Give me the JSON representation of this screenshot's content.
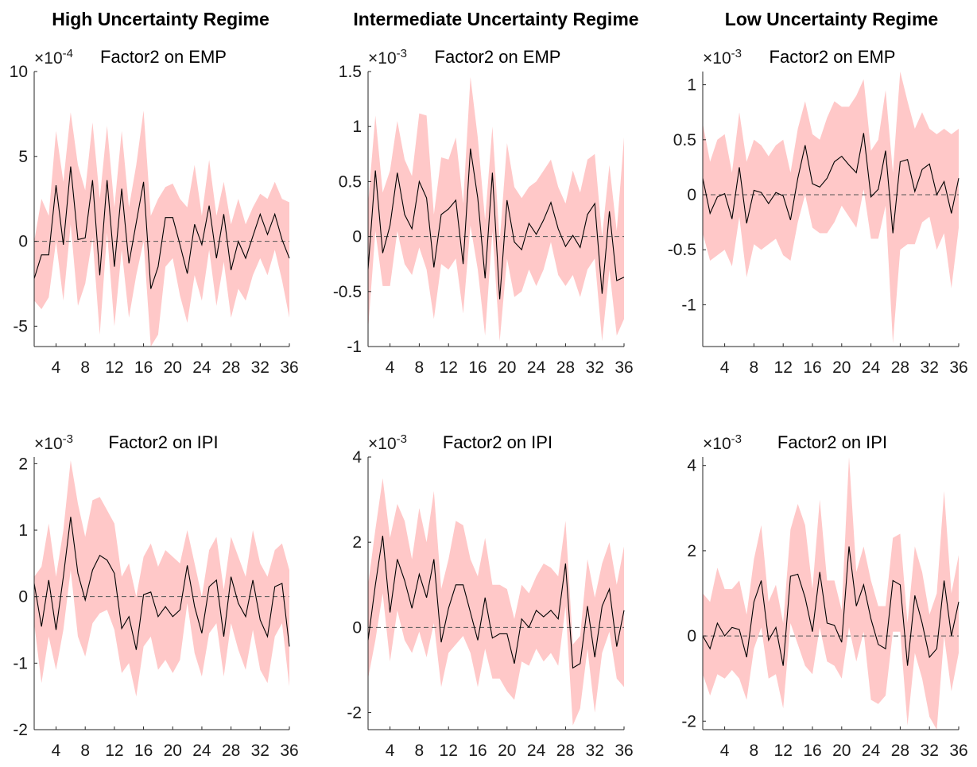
{
  "figure": {
    "column_titles": [
      "High Uncertainty Regime",
      "Intermediate Uncertainty Regime",
      "Low Uncertainty Regime"
    ]
  },
  "chart_data": [
    {
      "type": "line",
      "panel": "high-emp",
      "title": "Factor2 on EMP",
      "multiplier": "×10",
      "exponent": "-4",
      "xlim": [
        1,
        36
      ],
      "ylim": [
        -6.2,
        10
      ],
      "xticks": [
        4,
        8,
        12,
        16,
        20,
        24,
        28,
        32,
        36
      ],
      "yticks": [
        -5,
        0,
        5,
        10
      ],
      "ytick_labels": [
        "-5",
        "0",
        "5",
        "10"
      ],
      "x": [
        1,
        2,
        3,
        4,
        5,
        6,
        7,
        8,
        9,
        10,
        11,
        12,
        13,
        14,
        15,
        16,
        17,
        18,
        19,
        20,
        21,
        22,
        23,
        24,
        25,
        26,
        27,
        28,
        29,
        30,
        31,
        32,
        33,
        34,
        35,
        36
      ],
      "series": [
        {
          "values": [
            -2.2,
            -0.8,
            -0.8,
            3.3,
            -0.2,
            4.4,
            0.1,
            0.2,
            3.6,
            -2.0,
            3.6,
            -1.5,
            3.1,
            -1.3,
            1.1,
            3.5,
            -2.8,
            -1.5,
            1.4,
            1.4,
            -0.2,
            -1.9,
            1.0,
            -0.2,
            2.1,
            -1.0,
            1.6,
            -1.7,
            0.0,
            -1.0,
            0.3,
            1.6,
            0.4,
            1.6,
            0.1,
            -1.0
          ]
        },
        {
          "role": "band-upper",
          "values": [
            0.0,
            2.5,
            1.5,
            6.5,
            3.5,
            7.6,
            4.5,
            3.0,
            7.0,
            2.5,
            6.8,
            2.0,
            6.5,
            2.0,
            4.5,
            7.7,
            1.5,
            2.5,
            3.2,
            3.4,
            2.5,
            2.0,
            4.5,
            1.5,
            4.8,
            1.5,
            3.5,
            1.0,
            2.5,
            1.0,
            2.0,
            2.8,
            2.5,
            3.5,
            2.5,
            2.3
          ]
        },
        {
          "role": "band-lower",
          "values": [
            -3.5,
            -4.0,
            -3.3,
            0.0,
            -3.5,
            1.0,
            -3.8,
            -2.5,
            0.2,
            -5.5,
            0.5,
            -5.0,
            -0.5,
            -4.5,
            -2.0,
            0.0,
            -6.2,
            -5.5,
            -1.5,
            -1.0,
            -3.2,
            -4.8,
            -2.0,
            -3.5,
            -0.5,
            -3.8,
            -1.2,
            -4.5,
            -2.8,
            -3.5,
            -2.0,
            -1.0,
            -2.0,
            -0.5,
            -2.3,
            -4.5
          ]
        }
      ]
    },
    {
      "type": "line",
      "panel": "inter-emp",
      "title": "Factor2 on EMP",
      "multiplier": "×10",
      "exponent": "-3",
      "xlim": [
        1,
        36
      ],
      "ylim": [
        -1.0,
        1.5
      ],
      "xticks": [
        4,
        8,
        12,
        16,
        20,
        24,
        28,
        32,
        36
      ],
      "yticks": [
        -1,
        -0.5,
        0,
        0.5,
        1,
        1.5
      ],
      "ytick_labels": [
        "-1",
        "-0.5",
        "0",
        "0.5",
        "1",
        "1.5"
      ],
      "x": [
        1,
        2,
        3,
        4,
        5,
        6,
        7,
        8,
        9,
        10,
        11,
        12,
        13,
        14,
        15,
        16,
        17,
        18,
        19,
        20,
        21,
        22,
        23,
        24,
        25,
        26,
        27,
        28,
        29,
        30,
        31,
        32,
        33,
        34,
        35,
        36
      ],
      "series": [
        {
          "values": [
            -0.3,
            0.6,
            -0.15,
            0.1,
            0.58,
            0.2,
            0.07,
            0.5,
            0.35,
            -0.28,
            0.2,
            0.25,
            0.33,
            -0.25,
            0.8,
            0.35,
            -0.38,
            0.58,
            -0.57,
            0.33,
            -0.05,
            -0.12,
            0.12,
            0.02,
            0.15,
            0.31,
            0.07,
            -0.09,
            0.01,
            -0.1,
            0.2,
            0.3,
            -0.52,
            0.23,
            -0.4,
            -0.37
          ]
        },
        {
          "role": "band-upper",
          "values": [
            0.3,
            1.1,
            0.4,
            0.6,
            1.05,
            0.7,
            0.55,
            1.12,
            1.1,
            0.2,
            0.72,
            0.7,
            0.9,
            0.3,
            1.45,
            0.9,
            0.15,
            1.0,
            -0.05,
            0.85,
            0.45,
            0.35,
            0.45,
            0.5,
            0.6,
            0.7,
            0.45,
            0.3,
            0.6,
            0.4,
            0.7,
            0.75,
            0.0,
            0.65,
            0.05,
            0.9
          ]
        },
        {
          "role": "band-lower",
          "values": [
            -0.85,
            0.05,
            -0.45,
            -0.45,
            0.05,
            -0.25,
            -0.35,
            -0.1,
            -0.3,
            -0.75,
            -0.25,
            -0.3,
            -0.2,
            -0.7,
            0.1,
            -0.3,
            -0.9,
            0.05,
            -0.95,
            -0.2,
            -0.55,
            -0.5,
            -0.3,
            -0.45,
            -0.3,
            -0.05,
            -0.35,
            -0.45,
            -0.35,
            -0.55,
            -0.3,
            -0.2,
            -0.95,
            -0.3,
            -0.9,
            -0.75
          ]
        }
      ]
    },
    {
      "type": "line",
      "panel": "low-emp",
      "title": "Factor2 on EMP",
      "multiplier": "×10",
      "exponent": "-3",
      "xlim": [
        1,
        36
      ],
      "ylim": [
        -1.38,
        1.12
      ],
      "xticks": [
        4,
        8,
        12,
        16,
        20,
        24,
        28,
        32,
        36
      ],
      "yticks": [
        -1,
        -0.5,
        0,
        0.5,
        1
      ],
      "ytick_labels": [
        "-1",
        "-0.5",
        "0",
        "0.5",
        "1"
      ],
      "x": [
        1,
        2,
        3,
        4,
        5,
        6,
        7,
        8,
        9,
        10,
        11,
        12,
        13,
        14,
        15,
        16,
        17,
        18,
        19,
        20,
        21,
        22,
        23,
        24,
        25,
        26,
        27,
        28,
        29,
        30,
        31,
        32,
        33,
        34,
        35,
        36
      ],
      "series": [
        {
          "values": [
            0.15,
            -0.17,
            -0.02,
            0.01,
            -0.22,
            0.25,
            -0.26,
            0.04,
            0.02,
            -0.08,
            0.02,
            -0.01,
            -0.23,
            0.15,
            0.45,
            0.1,
            0.07,
            0.15,
            0.3,
            0.35,
            0.27,
            0.2,
            0.56,
            -0.02,
            0.05,
            0.4,
            -0.35,
            0.3,
            0.32,
            0.03,
            0.23,
            0.28,
            0.0,
            0.12,
            -0.17,
            0.15
          ]
        },
        {
          "role": "band-upper",
          "values": [
            0.65,
            0.3,
            0.5,
            0.55,
            0.2,
            0.75,
            0.3,
            0.5,
            0.45,
            0.35,
            0.45,
            0.5,
            0.2,
            0.6,
            0.85,
            0.55,
            0.5,
            0.7,
            0.85,
            0.8,
            0.8,
            0.9,
            1.05,
            0.4,
            0.5,
            0.95,
            0.2,
            1.12,
            0.85,
            0.6,
            0.75,
            0.6,
            0.55,
            0.6,
            0.55,
            0.6
          ]
        },
        {
          "role": "band-lower",
          "values": [
            -0.35,
            -0.6,
            -0.55,
            -0.5,
            -0.65,
            -0.2,
            -0.75,
            -0.45,
            -0.5,
            -0.45,
            -0.4,
            -0.55,
            -0.6,
            -0.25,
            0.0,
            -0.3,
            -0.35,
            -0.35,
            -0.25,
            -0.1,
            -0.2,
            -0.3,
            0.05,
            -0.4,
            -0.4,
            -0.1,
            -1.35,
            -0.5,
            -0.45,
            -0.45,
            -0.25,
            -0.2,
            -0.5,
            -0.35,
            -0.85,
            -0.3
          ]
        }
      ]
    },
    {
      "type": "line",
      "panel": "high-ipi",
      "title": "Factor2 on IPI",
      "multiplier": "×10",
      "exponent": "-3",
      "xlim": [
        1,
        36
      ],
      "ylim": [
        -2.0,
        2.1
      ],
      "xticks": [
        4,
        8,
        12,
        16,
        20,
        24,
        28,
        32,
        36
      ],
      "yticks": [
        -2,
        -1,
        0,
        1,
        2
      ],
      "ytick_labels": [
        "-2",
        "-1",
        "0",
        "1",
        "2"
      ],
      "x": [
        1,
        2,
        3,
        4,
        5,
        6,
        7,
        8,
        9,
        10,
        11,
        12,
        13,
        14,
        15,
        16,
        17,
        18,
        19,
        20,
        21,
        22,
        23,
        24,
        25,
        26,
        27,
        28,
        29,
        30,
        31,
        32,
        33,
        34,
        35,
        36
      ],
      "series": [
        {
          "values": [
            0.2,
            -0.45,
            0.25,
            -0.5,
            0.3,
            1.2,
            0.35,
            -0.05,
            0.4,
            0.62,
            0.55,
            0.35,
            -0.48,
            -0.3,
            -0.8,
            0.03,
            0.07,
            -0.3,
            -0.15,
            -0.3,
            -0.2,
            0.47,
            -0.15,
            -0.55,
            0.15,
            0.25,
            -0.6,
            0.3,
            -0.1,
            -0.3,
            0.25,
            -0.35,
            -0.6,
            0.15,
            0.2,
            -0.75
          ]
        },
        {
          "role": "band-upper",
          "values": [
            0.3,
            0.45,
            1.1,
            0.3,
            1.0,
            2.05,
            1.4,
            0.9,
            1.45,
            1.5,
            1.3,
            1.1,
            0.3,
            0.5,
            0.0,
            0.6,
            0.8,
            0.45,
            0.7,
            0.6,
            0.5,
            1.0,
            0.5,
            0.0,
            0.7,
            0.9,
            0.1,
            0.9,
            0.6,
            0.3,
            1.0,
            0.5,
            0.3,
            0.7,
            0.8,
            0.4
          ]
        },
        {
          "role": "band-lower",
          "values": [
            -0.4,
            -1.3,
            -0.6,
            -1.1,
            -0.5,
            0.4,
            -0.6,
            -0.9,
            -0.4,
            -0.25,
            -0.2,
            -0.5,
            -1.15,
            -1.0,
            -1.5,
            -0.75,
            -0.6,
            -1.1,
            -0.95,
            -1.15,
            -0.95,
            -0.1,
            -0.85,
            -1.2,
            -0.55,
            -0.4,
            -1.2,
            -0.4,
            -0.8,
            -1.1,
            -0.5,
            -1.1,
            -1.3,
            -0.6,
            -0.4,
            -1.35
          ]
        }
      ]
    },
    {
      "type": "line",
      "panel": "inter-ipi",
      "title": "Factor2 on IPI",
      "multiplier": "×10",
      "exponent": "-3",
      "xlim": [
        1,
        36
      ],
      "ylim": [
        -2.4,
        4.0
      ],
      "xticks": [
        4,
        8,
        12,
        16,
        20,
        24,
        28,
        32,
        36
      ],
      "yticks": [
        -2,
        0,
        2,
        4
      ],
      "ytick_labels": [
        "-2",
        "0",
        "2",
        "4"
      ],
      "x": [
        1,
        2,
        3,
        4,
        5,
        6,
        7,
        8,
        9,
        10,
        11,
        12,
        13,
        14,
        15,
        16,
        17,
        18,
        19,
        20,
        21,
        22,
        23,
        24,
        25,
        26,
        27,
        28,
        29,
        30,
        31,
        32,
        33,
        34,
        35,
        36
      ],
      "series": [
        {
          "values": [
            -0.3,
            1.0,
            2.15,
            0.35,
            1.6,
            1.1,
            0.45,
            1.25,
            0.7,
            1.6,
            -0.35,
            0.45,
            1.0,
            1.0,
            0.35,
            -0.3,
            0.7,
            -0.25,
            -0.15,
            -0.15,
            -0.85,
            0.2,
            0.0,
            0.4,
            0.25,
            0.4,
            0.2,
            1.5,
            -0.95,
            -0.85,
            0.5,
            -0.7,
            0.5,
            0.9,
            -0.45,
            0.4
          ]
        },
        {
          "role": "band-upper",
          "values": [
            1.0,
            2.3,
            3.5,
            2.1,
            2.9,
            2.5,
            1.6,
            2.8,
            2.0,
            3.2,
            0.9,
            1.6,
            2.5,
            2.4,
            1.6,
            1.2,
            2.1,
            1.0,
            1.0,
            0.9,
            0.2,
            1.0,
            0.8,
            1.2,
            1.5,
            1.4,
            1.2,
            2.5,
            -0.4,
            -0.2,
            1.6,
            0.7,
            1.5,
            2.0,
            1.0,
            1.9
          ]
        },
        {
          "role": "band-lower",
          "values": [
            -1.2,
            -0.3,
            0.8,
            -0.8,
            0.4,
            -0.3,
            -0.6,
            -0.1,
            -0.7,
            0.1,
            -1.4,
            -0.6,
            -0.4,
            -0.2,
            -0.6,
            -1.4,
            -0.5,
            -1.2,
            -1.2,
            -1.5,
            -1.7,
            -0.8,
            -0.9,
            -0.5,
            -0.8,
            -0.6,
            -0.9,
            0.5,
            -2.3,
            -1.9,
            -0.5,
            -2.0,
            -0.6,
            -0.1,
            -1.2,
            -1.4
          ]
        }
      ]
    },
    {
      "type": "line",
      "panel": "low-ipi",
      "title": "Factor2 on IPI",
      "multiplier": "×10",
      "exponent": "-3",
      "xlim": [
        1,
        36
      ],
      "ylim": [
        -2.2,
        4.2
      ],
      "xticks": [
        4,
        8,
        12,
        16,
        20,
        24,
        28,
        32,
        36
      ],
      "yticks": [
        -2,
        0,
        2,
        4
      ],
      "ytick_labels": [
        "-2",
        "0",
        "2",
        "4"
      ],
      "x": [
        1,
        2,
        3,
        4,
        5,
        6,
        7,
        8,
        9,
        10,
        11,
        12,
        13,
        14,
        15,
        16,
        17,
        18,
        19,
        20,
        21,
        22,
        23,
        24,
        25,
        26,
        27,
        28,
        29,
        30,
        31,
        32,
        33,
        34,
        35,
        36
      ],
      "series": [
        {
          "values": [
            0.0,
            -0.3,
            0.3,
            0.0,
            0.2,
            0.15,
            -0.5,
            0.8,
            1.3,
            -0.1,
            0.2,
            -0.7,
            1.4,
            1.45,
            0.9,
            0.1,
            1.5,
            0.3,
            0.25,
            -0.15,
            2.1,
            0.7,
            1.2,
            0.4,
            -0.2,
            -0.3,
            1.3,
            1.2,
            -0.7,
            0.95,
            0.3,
            -0.5,
            -0.3,
            1.3,
            0.0,
            0.8
          ]
        },
        {
          "role": "band-upper",
          "values": [
            1.0,
            0.8,
            1.6,
            1.1,
            1.1,
            1.3,
            0.5,
            1.8,
            2.6,
            0.8,
            1.2,
            0.3,
            2.5,
            3.1,
            2.6,
            1.1,
            3.2,
            1.3,
            1.3,
            0.6,
            4.2,
            1.5,
            2.1,
            1.3,
            0.7,
            0.7,
            2.3,
            2.4,
            0.3,
            2.1,
            1.5,
            0.5,
            1.0,
            3.4,
            1.0,
            1.9
          ]
        },
        {
          "role": "band-lower",
          "values": [
            -0.9,
            -1.4,
            -0.9,
            -1.0,
            -0.8,
            -1.0,
            -1.5,
            -0.3,
            0.2,
            -1.0,
            -0.9,
            -1.7,
            0.3,
            -0.2,
            -0.7,
            -0.9,
            0.2,
            -0.6,
            -0.7,
            -1.0,
            0.2,
            -0.6,
            0.1,
            -1.5,
            -1.6,
            -1.4,
            0.1,
            0.1,
            -2.1,
            -0.4,
            -1.0,
            -1.9,
            -2.2,
            0.0,
            -1.3,
            -0.4
          ]
        }
      ]
    }
  ]
}
